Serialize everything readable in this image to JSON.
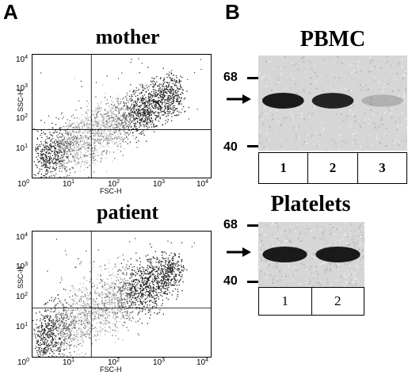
{
  "panel_a": {
    "letter": "A",
    "plots": [
      {
        "title": "mother",
        "x_label": "FSC-H",
        "y_label": "SSC-H",
        "x_ticks": [
          {
            "base": "10",
            "exp": "0"
          },
          {
            "base": "10",
            "exp": "1"
          },
          {
            "base": "10",
            "exp": "2"
          },
          {
            "base": "10",
            "exp": "3"
          },
          {
            "base": "10",
            "exp": "4"
          }
        ],
        "y_ticks": [
          {
            "base": "10",
            "exp": "0"
          },
          {
            "base": "10",
            "exp": "1"
          },
          {
            "base": "10",
            "exp": "2"
          },
          {
            "base": "10",
            "exp": "3"
          },
          {
            "base": "10",
            "exp": "4"
          }
        ]
      },
      {
        "title": "patient",
        "x_label": "FSC-H",
        "y_label": "SSC-H",
        "x_ticks": [
          {
            "base": "10",
            "exp": "0"
          },
          {
            "base": "10",
            "exp": "1"
          },
          {
            "base": "10",
            "exp": "2"
          },
          {
            "base": "10",
            "exp": "3"
          },
          {
            "base": "10",
            "exp": "4"
          }
        ],
        "y_ticks": [
          {
            "base": "10",
            "exp": "0"
          },
          {
            "base": "10",
            "exp": "1"
          },
          {
            "base": "10",
            "exp": "2"
          },
          {
            "base": "10",
            "exp": "3"
          },
          {
            "base": "10",
            "exp": "4"
          }
        ]
      }
    ]
  },
  "panel_b": {
    "letter": "B",
    "blots": [
      {
        "title": "PBMC",
        "markers": [
          "68",
          "40"
        ],
        "lanes": [
          "1",
          "2",
          "3"
        ],
        "band_intensity": [
          1.0,
          0.95,
          0.2
        ]
      },
      {
        "title": "Platelets",
        "markers": [
          "68",
          "40"
        ],
        "lanes": [
          "1",
          "2"
        ],
        "band_intensity": [
          1.0,
          1.0
        ]
      }
    ]
  },
  "colors": {
    "ink": "#000000",
    "dot_dense": "#bdbdbd",
    "dot_sparse": "#222222",
    "gel_background": "#d6d6d6",
    "band": "#1a1a1a"
  }
}
